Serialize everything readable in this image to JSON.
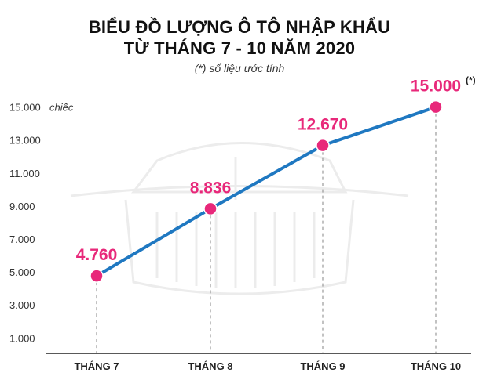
{
  "chart_data": {
    "type": "line",
    "title_line1": "BIỂU ĐỒ LƯỢNG Ô TÔ NHẬP KHẨU",
    "title_line2": "TỪ THÁNG 7 - 10 NĂM 2020",
    "subtitle": "(*) số liệu ước tính",
    "categories": [
      "THÁNG 7",
      "THÁNG 8",
      "THÁNG 9",
      "THÁNG 10"
    ],
    "series": [
      {
        "values": [
          4760,
          8836,
          12670,
          15000
        ]
      }
    ],
    "data_labels": [
      "4.760",
      "8.836",
      "12.670",
      "15.000"
    ],
    "data_label_notes": [
      "",
      "",
      "",
      "(*)"
    ],
    "y_ticks": [
      1000,
      3000,
      5000,
      7000,
      9000,
      11000,
      13000,
      15000
    ],
    "y_tick_labels": [
      "1.000",
      "3.000",
      "5.000",
      "7.000",
      "9.000",
      "11.000",
      "13.000",
      "15.000"
    ],
    "y_unit": "chiếc",
    "ylim": [
      0,
      16000
    ],
    "grid": false,
    "colors": {
      "line": "#1f78c1",
      "marker": "#e8287a",
      "label": "#e8287a",
      "axis": "#222222",
      "dash": "#999999"
    }
  }
}
